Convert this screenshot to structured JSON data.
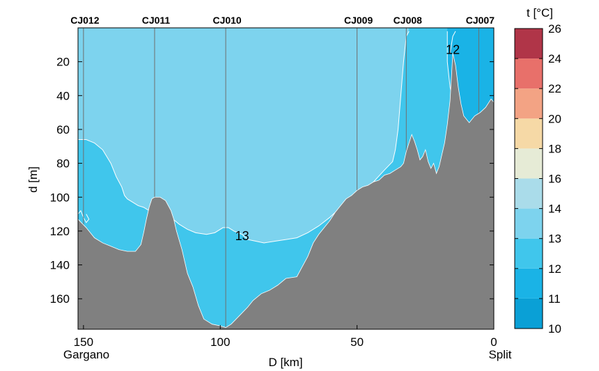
{
  "chart_data": {
    "type": "section",
    "xlabel": "D [km]",
    "ylabel": "d [m]",
    "xlim": [
      152,
      0
    ],
    "ylim": [
      0,
      178
    ],
    "xticks": [
      150,
      100,
      50,
      0
    ],
    "yticks": [
      20,
      40,
      60,
      80,
      100,
      120,
      140,
      160
    ],
    "end_labels": {
      "left": "Gargano",
      "right": "Split"
    },
    "stations": [
      {
        "name": "CJ012",
        "x": 150
      },
      {
        "name": "CJ011",
        "x": 124
      },
      {
        "name": "CJ010",
        "x": 98
      },
      {
        "name": "CJ009",
        "x": 50
      },
      {
        "name": "CJ008",
        "x": 32
      },
      {
        "name": "CJ007",
        "x": 5.5
      }
    ],
    "contour_labels": [
      {
        "text": "13",
        "x": 92,
        "y": 123
      },
      {
        "text": "12",
        "x": 15,
        "y": 13
      }
    ],
    "colorbar": {
      "title": "t [°C]",
      "levels": [
        10,
        11,
        12,
        13,
        14,
        16,
        18,
        20,
        22,
        24,
        26
      ],
      "colors": [
        "#0aa0d6",
        "#1ab3e6",
        "#40c6ec",
        "#7dd3ee",
        "#aadcea",
        "#e6ebd6",
        "#f6d9a6",
        "#f3a384",
        "#e8706a",
        "#b03548"
      ]
    },
    "bathymetry": [
      [
        152,
        113
      ],
      [
        149,
        118
      ],
      [
        146,
        124
      ],
      [
        143,
        127
      ],
      [
        140,
        129
      ],
      [
        137,
        131
      ],
      [
        134,
        132
      ],
      [
        131,
        132
      ],
      [
        129,
        128
      ],
      [
        128,
        121
      ],
      [
        127,
        113
      ],
      [
        126,
        106
      ],
      [
        125,
        101
      ],
      [
        124,
        100
      ],
      [
        122,
        100
      ],
      [
        120,
        102
      ],
      [
        118,
        108
      ],
      [
        117,
        113
      ],
      [
        116,
        120
      ],
      [
        114,
        131
      ],
      [
        112,
        145
      ],
      [
        110,
        153
      ],
      [
        108,
        164
      ],
      [
        106,
        172
      ],
      [
        103,
        175
      ],
      [
        100,
        176
      ],
      [
        98,
        177
      ],
      [
        96,
        175
      ],
      [
        93,
        170
      ],
      [
        90,
        165
      ],
      [
        88,
        161
      ],
      [
        85,
        157
      ],
      [
        82,
        155
      ],
      [
        79,
        152
      ],
      [
        76,
        148
      ],
      [
        72,
        147
      ],
      [
        70,
        141
      ],
      [
        68,
        135
      ],
      [
        66,
        127
      ],
      [
        64,
        122
      ],
      [
        62,
        118
      ],
      [
        60,
        114
      ],
      [
        58,
        109
      ],
      [
        56,
        105
      ],
      [
        54,
        101
      ],
      [
        52,
        99
      ],
      [
        50,
        96
      ],
      [
        48,
        94
      ],
      [
        46,
        93
      ],
      [
        44,
        91
      ],
      [
        42,
        90
      ],
      [
        40,
        87
      ],
      [
        38,
        86
      ],
      [
        36,
        84
      ],
      [
        34,
        82
      ],
      [
        33,
        80
      ],
      [
        32,
        73
      ],
      [
        31,
        68
      ],
      [
        30,
        63
      ],
      [
        29,
        67
      ],
      [
        28,
        72
      ],
      [
        27,
        78
      ],
      [
        26,
        76
      ],
      [
        25,
        72
      ],
      [
        24,
        79
      ],
      [
        23,
        83
      ],
      [
        22,
        80
      ],
      [
        21,
        86
      ],
      [
        20,
        82
      ],
      [
        19,
        75
      ],
      [
        18,
        68
      ],
      [
        17,
        57
      ],
      [
        16,
        43
      ],
      [
        15,
        15
      ],
      [
        14,
        22
      ],
      [
        13,
        35
      ],
      [
        12,
        45
      ],
      [
        11,
        52
      ],
      [
        9,
        56
      ],
      [
        7,
        52
      ],
      [
        5,
        50
      ],
      [
        3,
        47
      ],
      [
        1,
        42
      ],
      [
        0,
        44
      ]
    ],
    "isotherm_13": [
      [
        152,
        66
      ],
      [
        149,
        66
      ],
      [
        146,
        68
      ],
      [
        143,
        72
      ],
      [
        140,
        80
      ],
      [
        138,
        88
      ],
      [
        136,
        94
      ],
      [
        135,
        99
      ],
      [
        134,
        101
      ],
      [
        132,
        103
      ],
      [
        130,
        105
      ],
      [
        128,
        106
      ],
      [
        126,
        108
      ],
      [
        124,
        109
      ],
      [
        122,
        110
      ],
      [
        120,
        111
      ],
      [
        118,
        112
      ],
      [
        115,
        116
      ],
      [
        112,
        119
      ],
      [
        109,
        121
      ],
      [
        105,
        122
      ],
      [
        102,
        121
      ],
      [
        99,
        118
      ],
      [
        97,
        118
      ],
      [
        95,
        120
      ],
      [
        92,
        122
      ],
      [
        90,
        125
      ],
      [
        87,
        126
      ],
      [
        84,
        127
      ],
      [
        80,
        126
      ],
      [
        76,
        125
      ],
      [
        72,
        124
      ],
      [
        68,
        121
      ],
      [
        64,
        117
      ],
      [
        60,
        112
      ],
      [
        56,
        106
      ],
      [
        52,
        101
      ],
      [
        48,
        97
      ],
      [
        44,
        91
      ],
      [
        40,
        84
      ],
      [
        37,
        79
      ],
      [
        36,
        72
      ],
      [
        35,
        60
      ],
      [
        34,
        40
      ],
      [
        33,
        20
      ],
      [
        32,
        5
      ],
      [
        31,
        2
      ]
    ],
    "isotherm_12a": [
      [
        152,
        110
      ],
      [
        151,
        108
      ],
      [
        150,
        112
      ],
      [
        149,
        115
      ],
      [
        148,
        113
      ],
      [
        149,
        110
      ]
    ],
    "isotherm_12b": [
      [
        17,
        2
      ],
      [
        17,
        20
      ],
      [
        16,
        35
      ],
      [
        14,
        50
      ],
      [
        12,
        58
      ],
      [
        10,
        63
      ],
      [
        8,
        66
      ],
      [
        6,
        68
      ],
      [
        4,
        69
      ],
      [
        2,
        68
      ],
      [
        0,
        68
      ]
    ],
    "isotherm_12c": [
      [
        16,
        15
      ],
      [
        15,
        5
      ],
      [
        14,
        2
      ]
    ]
  }
}
